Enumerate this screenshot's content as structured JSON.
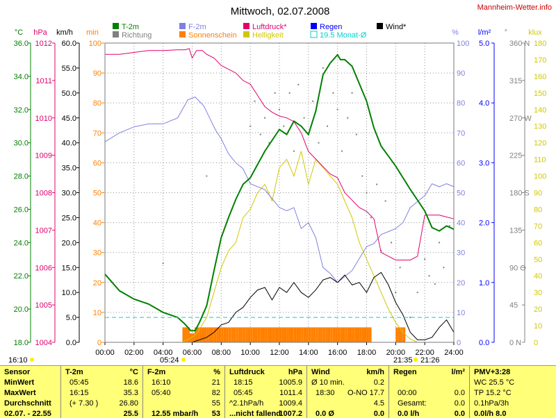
{
  "header": {
    "title": "Mittwoch, 02.07.2008",
    "site": "Mannheim-Wetter.info"
  },
  "colors": {
    "temp": "#008000",
    "humidity": "#8080e0",
    "pressure": "#e0006e",
    "rain": "#0000ff",
    "wind": "#000000",
    "direction": "#808080",
    "sunshine": "#ff8000",
    "brightness": "#d0c800",
    "month_avg": "#00d0d0",
    "stats_bg": "#ffff78"
  },
  "units_row": {
    "temp": "°C",
    "pressure": "hPa",
    "wind": "km/h",
    "sunshine": "min",
    "humidity": "%",
    "rain": "l/m²",
    "direction": "°",
    "brightness": "klux"
  },
  "legend": [
    {
      "label": "T-2m",
      "color": "#008000",
      "style": "box"
    },
    {
      "label": "Richtung",
      "color": "#808080",
      "style": "box"
    },
    {
      "label": "F-2m",
      "color": "#8080e0",
      "style": "box"
    },
    {
      "label": "Sonnenschein",
      "color": "#ff8000",
      "style": "box"
    },
    {
      "label": "Luftdruck*",
      "color": "#e0006e",
      "style": "box"
    },
    {
      "label": "Helligkeit",
      "color": "#d0c800",
      "style": "box"
    },
    {
      "label": "Regen",
      "color": "#0000ff",
      "style": "box"
    },
    {
      "label": "19.5 Monat-Ø",
      "color": "#00d0d0",
      "style": "outline"
    },
    {
      "label": "Wind*",
      "color": "#000000",
      "style": "box"
    }
  ],
  "time_annotations": {
    "now": "16:10",
    "sunrise": "05:24",
    "sunset": "21:35",
    "sunset_end": "21:26"
  },
  "chart_data": {
    "type": "line",
    "title": "Mittwoch, 02.07.2008",
    "x_ticks": [
      "00:00",
      "02:00",
      "04:00",
      "06:00",
      "08:00",
      "10:00",
      "12:00",
      "14:00",
      "16:00",
      "18:00",
      "20:00",
      "22:00",
      "24:00"
    ],
    "axes": {
      "temp": {
        "unit": "°C",
        "range": [
          18,
          36
        ],
        "ticks": [
          "36.0",
          "34.0",
          "32.0",
          "30.0",
          "28.0",
          "26.0",
          "24.0",
          "22.0",
          "20.0",
          "18.0"
        ]
      },
      "pressure": {
        "unit": "hPa",
        "range": [
          1004,
          1012
        ],
        "ticks": [
          "1012",
          "1011",
          "1010",
          "1009",
          "1008",
          "1007",
          "1006",
          "1005",
          "1004"
        ]
      },
      "wind": {
        "unit": "km/h",
        "range": [
          0,
          60
        ],
        "ticks": [
          "60.0",
          "55.0",
          "50.0",
          "45.0",
          "40.0",
          "35.0",
          "30.0",
          "25.0",
          "20.0",
          "15.0",
          "10.0",
          "5.0",
          "0.0"
        ]
      },
      "sunshine": {
        "unit": "min",
        "range": [
          0,
          100
        ],
        "ticks": [
          "100",
          "90",
          "80",
          "70",
          "60",
          "50",
          "40",
          "30",
          "20",
          "10",
          "0"
        ]
      },
      "humidity": {
        "unit": "%",
        "range": [
          0,
          100
        ],
        "ticks": [
          "100",
          "90",
          "80",
          "70",
          "60",
          "50",
          "40",
          "30",
          "20",
          "10",
          "0"
        ]
      },
      "rain": {
        "unit": "l/m²",
        "range": [
          0,
          5
        ],
        "ticks": [
          "5.0",
          "4.0",
          "3.0",
          "2.0",
          "1.0",
          "0.0"
        ]
      },
      "direction": {
        "unit": "°",
        "range": [
          0,
          360
        ],
        "ticks": [
          "360 N",
          "315",
          "270 W",
          "225",
          "180 S",
          "135",
          "90 O",
          "45",
          "0 N"
        ]
      },
      "brightness": {
        "unit": "klux",
        "range": [
          0,
          180
        ],
        "ticks": [
          "180",
          "170",
          "160",
          "150",
          "140",
          "130",
          "120",
          "110",
          "100",
          "90",
          "80",
          "70",
          "60",
          "50",
          "40",
          "30",
          "20",
          "10",
          "0"
        ]
      }
    },
    "month_avg_temp": 19.5,
    "series": [
      {
        "name": "T-2m",
        "axis": "temp",
        "color": "#008000",
        "x": [
          0,
          1,
          2,
          3,
          4,
          5,
          5.5,
          5.9,
          6.2,
          6.5,
          7,
          7.5,
          8,
          8.5,
          9,
          9.5,
          10,
          11,
          12,
          12.5,
          13,
          13.5,
          14,
          14.5,
          15,
          15.5,
          16,
          16.2,
          16.5,
          17,
          18,
          18.5,
          19,
          19.5,
          20,
          21,
          22,
          22.5,
          23,
          23.5,
          24
        ],
        "y": [
          22.1,
          21.1,
          20.6,
          20.3,
          19.8,
          19.5,
          19.1,
          18.7,
          18.7,
          19.2,
          20.2,
          22.3,
          24.3,
          25.5,
          26.6,
          27.5,
          27.9,
          29.5,
          30.8,
          30.5,
          31.3,
          31.0,
          30.5,
          31.9,
          34.1,
          34.8,
          35.3,
          35.0,
          35.0,
          34.6,
          32.5,
          30.9,
          29.8,
          29.2,
          28.6,
          27.2,
          25.9,
          24.9,
          24.7,
          25.0,
          24.8
        ]
      },
      {
        "name": "F-2m",
        "axis": "humidity",
        "color": "#8080e0",
        "x": [
          0,
          1,
          2,
          3,
          4,
          5,
          5.7,
          6.2,
          6.8,
          7.2,
          7.6,
          8,
          8.5,
          9,
          9.5,
          10,
          11,
          11.5,
          12,
          12.5,
          13,
          13.5,
          14,
          14.5,
          15,
          15.5,
          16,
          16.5,
          17,
          17.5,
          18,
          18.5,
          19,
          19.5,
          20,
          20.5,
          21,
          21.5,
          22,
          22.5,
          23,
          23.5,
          24
        ],
        "y": [
          67,
          70,
          72,
          73,
          73,
          75,
          81,
          82,
          79,
          75,
          71,
          68,
          63,
          60,
          58,
          53,
          51,
          48,
          45,
          44,
          45,
          38,
          40,
          35,
          25,
          23,
          20,
          22,
          24,
          28,
          32,
          33,
          36,
          37,
          38,
          40,
          45,
          47,
          49,
          53,
          52,
          53,
          52
        ]
      },
      {
        "name": "Luftdruck*",
        "axis": "pressure",
        "color": "#e0006e",
        "x": [
          0,
          1,
          2,
          3,
          4,
          5,
          5.5,
          5.8,
          6,
          6.3,
          6.7,
          7,
          7.5,
          8,
          8.5,
          9,
          9.5,
          10,
          10.5,
          11,
          11.5,
          12,
          12.5,
          13,
          13.5,
          14,
          14.5,
          15,
          15.5,
          16,
          16.5,
          17,
          17.5,
          18,
          18.5,
          19,
          19.5,
          20,
          20.5,
          21,
          21.5,
          22,
          23,
          24
        ],
        "y": [
          1011.7,
          1011.7,
          1011.75,
          1011.8,
          1011.8,
          1011.82,
          1011.82,
          1011.85,
          1011.6,
          1011.8,
          1011.8,
          1011.7,
          1011.6,
          1011.4,
          1011.3,
          1011.2,
          1011.0,
          1010.9,
          1010.6,
          1010.3,
          1010.15,
          1010.05,
          1010.0,
          1009.9,
          1009.6,
          1009.1,
          1008.9,
          1008.7,
          1008.5,
          1008.4,
          1008.0,
          1007.8,
          1007.6,
          1007.5,
          1007.3,
          1006.4,
          1006.3,
          1006.2,
          1006.2,
          1006.2,
          1006.3,
          1007.4,
          1007.4,
          1007.3
        ]
      },
      {
        "name": "Helligkeit",
        "axis": "brightness",
        "color": "#d0c800",
        "x": [
          5.3,
          5.8,
          6.3,
          7,
          7.5,
          8,
          8.5,
          9,
          9.5,
          10,
          10.5,
          11,
          11.5,
          12,
          12.5,
          13,
          13.5,
          14,
          14.5,
          15,
          15.5,
          16,
          16.5,
          17,
          17.5,
          18,
          18.5,
          19,
          19.5,
          20,
          20.5,
          21,
          21.5
        ],
        "y": [
          0,
          2,
          5,
          15,
          30,
          45,
          55,
          60,
          75,
          80,
          90,
          95,
          85,
          105,
          110,
          100,
          115,
          95,
          110,
          105,
          100,
          95,
          85,
          75,
          60,
          50,
          40,
          30,
          20,
          12,
          6,
          2,
          0
        ]
      },
      {
        "name": "Wind*",
        "axis": "wind",
        "color": "#000000",
        "x": [
          0,
          5,
          6,
          7,
          7.5,
          8,
          8.5,
          9,
          9.5,
          10,
          10.5,
          11,
          11.5,
          12,
          12.5,
          13,
          13.5,
          14,
          14.5,
          15,
          15.5,
          16,
          16.5,
          17,
          17.5,
          18,
          18.5,
          19,
          19.5,
          20,
          20.5,
          21,
          21.5,
          22,
          22.5,
          23,
          23.5,
          24
        ],
        "y": [
          0,
          0,
          0,
          1.0,
          2.0,
          3.5,
          4.0,
          6.0,
          7.0,
          9.0,
          10.5,
          11.0,
          8.5,
          11.0,
          10.0,
          12.0,
          10.0,
          9.0,
          10.5,
          12.5,
          13.0,
          12.0,
          13.5,
          11.5,
          12.0,
          10.0,
          13.0,
          14.0,
          11.5,
          8.0,
          5.5,
          2.0,
          0.5,
          0.5,
          1.0,
          3.0,
          4.5,
          2.0
        ]
      }
    ],
    "sunshine_bars": {
      "axis": "sunshine",
      "color": "#ff8000",
      "x_step_hours": 0.1667,
      "x": [
        5.33,
        5.5,
        5.67,
        5.83,
        6.0,
        6.17,
        6.33,
        6.5,
        6.67,
        6.83,
        7.0,
        7.17,
        7.33,
        7.5,
        7.67,
        7.83,
        8.0,
        8.17,
        8.33,
        8.5,
        8.67,
        8.83,
        9.0,
        9.17,
        9.33,
        9.5,
        9.67,
        9.83,
        10.0,
        10.17,
        10.33,
        10.5,
        10.67,
        10.83,
        11.0,
        11.17,
        11.33,
        11.5,
        11.67,
        11.83,
        12.0,
        12.17,
        12.33,
        12.5,
        12.67,
        12.83,
        13.0,
        13.17,
        13.33,
        13.5,
        13.67,
        13.83,
        14.0,
        14.17,
        14.33,
        14.5,
        14.67,
        14.83,
        15.0,
        15.17,
        15.33,
        15.5,
        15.67,
        15.83,
        16.0,
        16.17,
        16.33,
        16.5,
        16.67,
        16.83,
        17.0,
        17.17,
        17.33,
        17.5,
        17.67,
        17.83,
        18.0,
        18.17,
        20.0,
        20.17,
        20.33,
        20.5
      ],
      "y": [
        5,
        5,
        5,
        3,
        3,
        5,
        5,
        5,
        5,
        5,
        5,
        5,
        5,
        5,
        5,
        5,
        5,
        5,
        5,
        5,
        5,
        5,
        5,
        5,
        5,
        5,
        5,
        5,
        5,
        5,
        5,
        5,
        5,
        5,
        5,
        5,
        5,
        5,
        5,
        5,
        5,
        5,
        5,
        5,
        5,
        5,
        5,
        5,
        5,
        5,
        5,
        5,
        5,
        5,
        5,
        5,
        5,
        5,
        5,
        5,
        5,
        5,
        5,
        5,
        5,
        5,
        5,
        5,
        5,
        5,
        5,
        5,
        5,
        5,
        5,
        5,
        5,
        5,
        5,
        5,
        5,
        5
      ]
    },
    "direction_points": {
      "axis": "direction",
      "color": "#808080",
      "x": [
        4.0,
        7.0,
        10.0,
        10.3,
        10.7,
        11.0,
        11.3,
        11.7,
        12.0,
        12.3,
        12.7,
        13.0,
        13.3,
        13.7,
        14.0,
        14.3,
        14.7,
        15.0,
        15.3,
        15.7,
        16.0,
        16.3,
        16.7,
        17.0,
        17.3,
        17.7,
        18.0,
        18.3,
        18.7,
        19.0,
        19.3,
        19.7,
        20.0,
        20.3,
        21.0,
        21.5,
        22.0,
        22.3,
        22.7,
        23.0,
        23.3,
        23.7
      ],
      "y": [
        95,
        200,
        260,
        290,
        250,
        270,
        240,
        300,
        280,
        260,
        300,
        230,
        310,
        270,
        250,
        290,
        240,
        330,
        260,
        300,
        280,
        230,
        270,
        300,
        250,
        200,
        180,
        150,
        190,
        110,
        170,
        120,
        60,
        90,
        30,
        60,
        100,
        80,
        70,
        120,
        90,
        140
      ]
    },
    "rain": {
      "axis": "rain",
      "color": "#0000ff",
      "values": [],
      "total": "0.0"
    }
  },
  "stats_panel": {
    "sensor": {
      "header": "Sensor",
      "rows": [
        "MinWert",
        "MaxWert",
        "Durchschnitt",
        "02.07. - 22.55"
      ]
    },
    "temp": {
      "header": "T-2m",
      "unit": "°C",
      "rows": [
        [
          "05:45",
          "18.6"
        ],
        [
          "16:15",
          "35.3"
        ],
        [
          "(+ 7.30 )",
          "26.80"
        ],
        [
          "",
          "25.5"
        ]
      ]
    },
    "humidity": {
      "header": "F-2m",
      "unit": "%",
      "rows": [
        [
          "16:10",
          "21"
        ],
        [
          "05:40",
          "82"
        ],
        [
          "",
          "55"
        ],
        [
          "12.55 mbar/h",
          "53"
        ]
      ]
    },
    "pressure": {
      "header": "Luftdruck",
      "unit": "hPa",
      "rows": [
        [
          "18:15",
          "1005.9"
        ],
        [
          "05:45",
          "1011.4"
        ],
        [
          "^2.1hPa/h",
          "1009.4"
        ],
        [
          "...nicht fallend",
          "1007.2"
        ]
      ]
    },
    "wind": {
      "header": "Wind",
      "unit": "km/h",
      "rows": [
        [
          "Ø 10 min.",
          "",
          "0.2"
        ],
        [
          "18:30",
          "O-NO",
          "17.7"
        ],
        [
          "",
          "",
          "4.5"
        ],
        [
          "0.0 Ø",
          "",
          "0.0"
        ]
      ]
    },
    "rain": {
      "header": "Regen",
      "unit": "l/m²",
      "rows": [
        [
          "",
          "",
          " "
        ],
        [
          "00:00",
          "",
          "0.0"
        ],
        [
          "Gesamt:",
          "",
          "0.0"
        ],
        [
          "0.0 l/h",
          "",
          "0.0"
        ]
      ]
    },
    "pmv": {
      "header": "PMV+3:28",
      "rows": [
        "WC 25.5 °C",
        "TP 15.2 °C",
        "0.1hPa/3h",
        "0.0l/h   8.0"
      ]
    }
  }
}
